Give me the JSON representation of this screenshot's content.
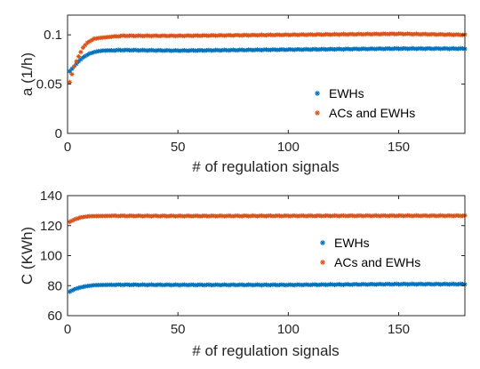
{
  "chart_data": [
    {
      "type": "scatter",
      "xlabel": "# of regulation signals",
      "ylabel": "a (1/h)",
      "xlim": [
        0,
        180
      ],
      "ylim": [
        0,
        0.12
      ],
      "xticks": [
        "0",
        "50",
        "100",
        "150"
      ],
      "xtick_values": [
        0,
        50,
        100,
        150
      ],
      "yticks": [
        "0",
        "0.05",
        "0.1"
      ],
      "ytick_values": [
        0,
        0.05,
        0.1
      ],
      "grid": false,
      "legend_position": "center-right",
      "series": [
        {
          "name": "EWHs",
          "color": "#0072BD",
          "marker": "asterisk",
          "x_range": [
            1,
            180
          ],
          "points": [
            [
              1,
              0.063
            ],
            [
              3,
              0.068
            ],
            [
              5,
              0.073
            ],
            [
              7,
              0.077
            ],
            [
              10,
              0.081
            ],
            [
              13,
              0.083
            ],
            [
              16,
              0.084
            ],
            [
              25,
              0.0845
            ],
            [
              50,
              0.084
            ],
            [
              100,
              0.085
            ],
            [
              150,
              0.086
            ],
            [
              180,
              0.086
            ]
          ]
        },
        {
          "name": "ACs and EWHs",
          "color": "#D95319",
          "marker": "asterisk",
          "x_range": [
            1,
            180
          ],
          "points": [
            [
              1,
              0.052
            ],
            [
              2,
              0.06
            ],
            [
              3,
              0.068
            ],
            [
              5,
              0.078
            ],
            [
              7,
              0.087
            ],
            [
              9,
              0.092
            ],
            [
              12,
              0.096
            ],
            [
              15,
              0.097
            ],
            [
              25,
              0.099
            ],
            [
              50,
              0.099
            ],
            [
              100,
              0.1
            ],
            [
              150,
              0.101
            ],
            [
              180,
              0.1
            ]
          ]
        }
      ]
    },
    {
      "type": "scatter",
      "xlabel": "# of regulation signals",
      "ylabel": "C (KWh)",
      "xlim": [
        0,
        180
      ],
      "ylim": [
        60,
        140
      ],
      "xticks": [
        "0",
        "50",
        "100",
        "150"
      ],
      "xtick_values": [
        0,
        50,
        100,
        150
      ],
      "yticks": [
        "60",
        "80",
        "100",
        "120",
        "140"
      ],
      "ytick_values": [
        60,
        80,
        100,
        120,
        140
      ],
      "grid": false,
      "legend_position": "center-right",
      "series": [
        {
          "name": "EWHs",
          "color": "#0072BD",
          "marker": "asterisk",
          "x_range": [
            1,
            180
          ],
          "points": [
            [
              1,
              76
            ],
            [
              3,
              77.5
            ],
            [
              5,
              78.5
            ],
            [
              8,
              79.5
            ],
            [
              12,
              80.3
            ],
            [
              20,
              80.6
            ],
            [
              50,
              80.5
            ],
            [
              100,
              80.5
            ],
            [
              150,
              81
            ],
            [
              180,
              81
            ]
          ]
        },
        {
          "name": "ACs and EWHs",
          "color": "#D95319",
          "marker": "asterisk",
          "x_range": [
            1,
            180
          ],
          "points": [
            [
              1,
              122.5
            ],
            [
              3,
              124
            ],
            [
              6,
              125.5
            ],
            [
              10,
              126.3
            ],
            [
              20,
              126.5
            ],
            [
              50,
              126.4
            ],
            [
              100,
              126.5
            ],
            [
              150,
              126.6
            ],
            [
              180,
              126.6
            ]
          ]
        }
      ]
    }
  ]
}
